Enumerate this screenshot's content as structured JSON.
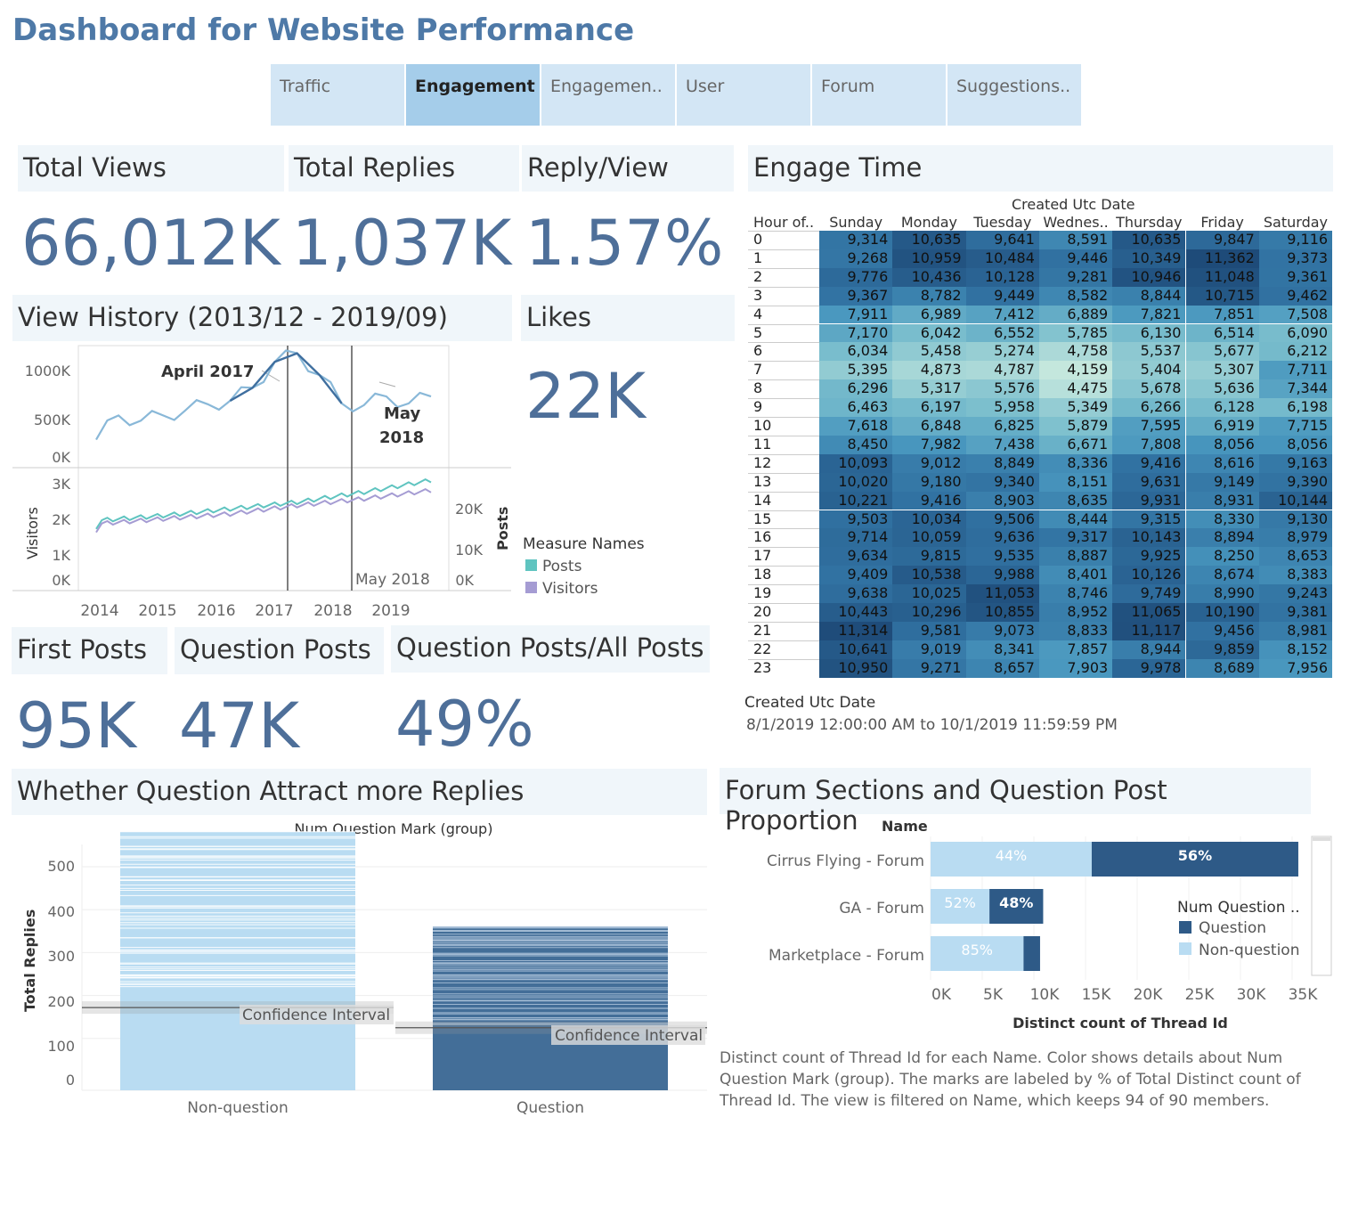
{
  "dashboard_title": "Dashboard for Website Performance",
  "tabs": [
    {
      "label": "Traffic",
      "active": false
    },
    {
      "label": "Engagement",
      "active": true
    },
    {
      "label": "Engagemen..",
      "active": false
    },
    {
      "label": "User",
      "active": false
    },
    {
      "label": "Forum",
      "active": false
    },
    {
      "label": "Suggestions..",
      "active": false
    }
  ],
  "kpis": {
    "total_views": {
      "label": "Total Views",
      "value": "66,012K"
    },
    "total_replies": {
      "label": "Total Replies",
      "value": "1,037K"
    },
    "reply_view": {
      "label": "Reply/View",
      "value": "1.57%"
    },
    "likes": {
      "label": "Likes",
      "value": "22K"
    },
    "first_posts": {
      "label": "First Posts",
      "value": "95K"
    },
    "question_posts": {
      "label": "Question Posts",
      "value": "47K"
    },
    "question_ratio": {
      "label": "Question Posts/All Posts",
      "value": "49%"
    }
  },
  "view_history": {
    "title": "View History (2013/12 - 2019/09)",
    "annotation_1": "April 2017",
    "annotation_2a": "May",
    "annotation_2b": "2018",
    "annotation_3": "May 2018",
    "y1_ticks": [
      "1000K",
      "500K",
      "0K"
    ],
    "y2_left_ticks": [
      "3K",
      "2K",
      "1K",
      "0K"
    ],
    "y2_right_ticks": [
      "20K",
      "10K",
      "0K"
    ],
    "y2_left_label": "Visitors",
    "y2_right_label": "Posts",
    "x_ticks": [
      "2014",
      "2015",
      "2016",
      "2017",
      "2018",
      "2019"
    ],
    "legend_title": "Measure Names",
    "legend": [
      {
        "name": "Posts",
        "color": "#5fc4c0"
      },
      {
        "name": "Visitors",
        "color": "#a59cd3"
      }
    ]
  },
  "engage_time": {
    "title": "Engage Time",
    "col_group_label": "Created Utc Date",
    "row_header": "Hour of..",
    "days": [
      "Sunday",
      "Monday",
      "Tuesday",
      "Wednes..",
      "Thursday",
      "Friday",
      "Saturday"
    ],
    "hours": [
      "0",
      "1",
      "2",
      "3",
      "4",
      "5",
      "6",
      "7",
      "8",
      "9",
      "10",
      "11",
      "12",
      "13",
      "14",
      "15",
      "16",
      "17",
      "18",
      "19",
      "20",
      "21",
      "22",
      "23"
    ],
    "values": [
      [
        9314,
        10635,
        9641,
        8591,
        10635,
        9847,
        9116
      ],
      [
        9268,
        10959,
        10484,
        9446,
        10349,
        11362,
        9373
      ],
      [
        9776,
        10436,
        10128,
        9281,
        10946,
        11048,
        9361
      ],
      [
        9367,
        8782,
        9449,
        8582,
        8844,
        10715,
        9462
      ],
      [
        7911,
        6989,
        7412,
        6889,
        7821,
        7851,
        7508
      ],
      [
        7170,
        6042,
        6552,
        5785,
        6130,
        6514,
        6090
      ],
      [
        6034,
        5458,
        5274,
        4758,
        5537,
        5677,
        6212
      ],
      [
        5395,
        4873,
        4787,
        4159,
        5404,
        5307,
        7711
      ],
      [
        6296,
        5317,
        5576,
        4475,
        5678,
        5636,
        7344
      ],
      [
        6463,
        6197,
        5958,
        5349,
        6266,
        6128,
        6198
      ],
      [
        7618,
        6848,
        6825,
        5879,
        7595,
        6919,
        7715
      ],
      [
        8450,
        7982,
        7438,
        6671,
        7808,
        8056,
        8056
      ],
      [
        10093,
        9012,
        8849,
        8336,
        9416,
        8616,
        9163
      ],
      [
        10020,
        9180,
        9340,
        8151,
        9631,
        9149,
        9390
      ],
      [
        10221,
        9416,
        8903,
        8635,
        9931,
        8931,
        10144
      ],
      [
        9503,
        10034,
        9506,
        8444,
        9315,
        8330,
        9130
      ],
      [
        9714,
        10059,
        9636,
        9317,
        10143,
        8894,
        8979
      ],
      [
        9634,
        9815,
        9535,
        8887,
        9925,
        8250,
        8653
      ],
      [
        9409,
        10538,
        9988,
        8401,
        10126,
        8674,
        8383
      ],
      [
        9638,
        10025,
        11053,
        8746,
        9749,
        8990,
        9243
      ],
      [
        10443,
        10296,
        10855,
        8952,
        11065,
        10190,
        9381
      ],
      [
        11314,
        9581,
        9073,
        8833,
        11117,
        9456,
        8981
      ],
      [
        10641,
        9019,
        8341,
        7857,
        8944,
        9859,
        8152
      ],
      [
        10950,
        9271,
        8657,
        7903,
        9978,
        8689,
        7956
      ]
    ],
    "filter_label": "Created Utc Date",
    "filter_value": "8/1/2019 12:00:00 AM to 10/1/2019 11:59:59 PM"
  },
  "question_replies": {
    "title": "Whether Question Attract more Replies",
    "group_label": "Num Question Mark (group)",
    "y_label": "Total Replies",
    "y_ticks": [
      "500",
      "400",
      "300",
      "200",
      "100",
      "0"
    ],
    "categories": [
      "Non-question",
      "Question"
    ],
    "ci_label": "Confidence Interval"
  },
  "forum_sections": {
    "title": "Forum Sections and Question Post Proportion",
    "name_header": "Name",
    "x_label": "Distinct count of Thread Id",
    "x_ticks": [
      "0K",
      "5K",
      "10K",
      "15K",
      "20K",
      "25K",
      "30K",
      "35K"
    ],
    "legend_title": "Num Question ..",
    "legend": [
      {
        "name": "Question",
        "color": "#2e5a87"
      },
      {
        "name": "Non-question",
        "color": "#b9dcf2"
      }
    ],
    "footnote": "Distinct count of Thread Id for each Name.  Color shows details about Num Question Mark (group).  The marks are labeled by % of Total Distinct count of Thread Id. The view is filtered on Name, which keeps 94 of 90 members."
  },
  "chart_data": [
    {
      "type": "line",
      "title": "View History (2013/12 - 2019/09)",
      "ylabel": "",
      "ylim": [
        0,
        1250000
      ],
      "x": [
        "2013-12",
        "2014-06",
        "2015-01",
        "2015-06",
        "2016-01",
        "2016-06",
        "2017-01",
        "2017-04",
        "2017-08",
        "2017-11",
        "2018-02",
        "2018-05",
        "2018-09",
        "2019-01",
        "2019-05",
        "2019-09"
      ],
      "series": [
        {
          "name": "",
          "values": [
            200000,
            480000,
            420000,
            480000,
            540000,
            610000,
            650000,
            800000,
            1100000,
            1200000,
            950000,
            620000,
            600000,
            700000,
            620000,
            700000
          ]
        }
      ]
    },
    {
      "type": "line",
      "ylabel": "Visitors",
      "x": [
        "2014",
        "2015",
        "2016",
        "2017",
        "2018",
        "2019"
      ],
      "series": [
        {
          "name": "Posts",
          "values": [
            1900,
            2050,
            2250,
            2450,
            2750,
            3100
          ]
        },
        {
          "name": "Visitors",
          "values": [
            1800,
            1950,
            2100,
            2350,
            2550,
            2800
          ]
        }
      ]
    },
    {
      "type": "heatmap",
      "title": "Engage Time"
    },
    {
      "type": "bar",
      "title": "Whether Question Attract more Replies",
      "categories": [
        "Non-question",
        "Question"
      ],
      "values": [
        540,
        360
      ],
      "ci": [
        172,
        125
      ],
      "ylabel": "Total Replies",
      "ylim": [
        0,
        540
      ]
    },
    {
      "type": "bar",
      "title": "Forum Sections and Question Post Proportion",
      "categories": [
        "Cirrus Flying - Forum",
        "GA - Forum",
        "Marketplace - Forum"
      ],
      "series": [
        {
          "name": "Non-question",
          "values": [
            15600,
            5700,
            9000
          ],
          "labels": [
            "44%",
            "52%",
            "85%"
          ]
        },
        {
          "name": "Question",
          "values": [
            20000,
            5200,
            1600
          ],
          "labels": [
            "56%",
            "48%",
            ""
          ]
        }
      ],
      "xlabel": "Distinct count of Thread Id",
      "xlim": [
        0,
        37000
      ]
    }
  ]
}
